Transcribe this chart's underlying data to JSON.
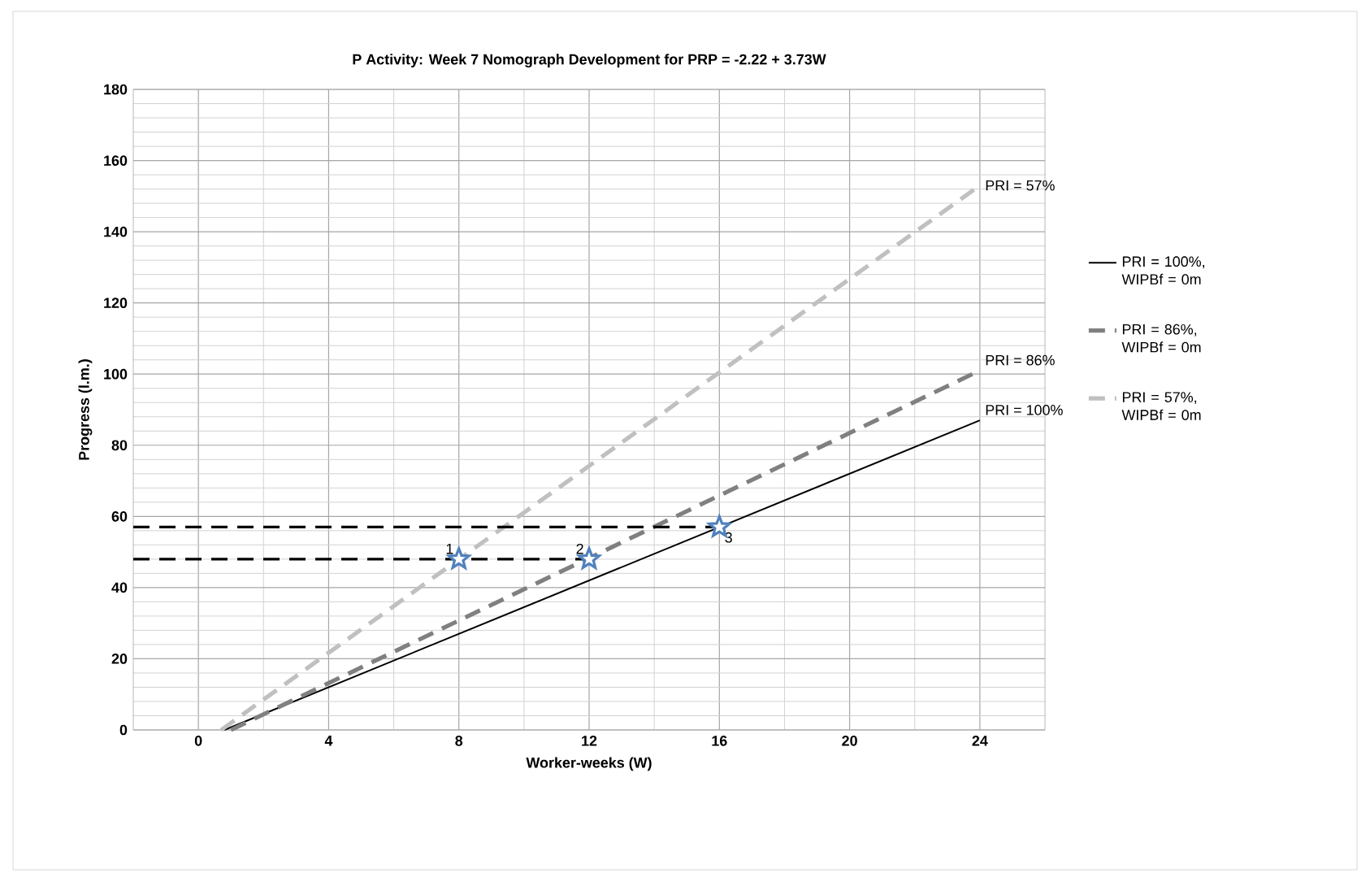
{
  "chart_data": {
    "type": "line",
    "title": "P Activity: Week 7 Nomograph Development for PRP = -2.22 + 3.73W",
    "xlabel": "Worker-weeks (W)",
    "ylabel": "Progress (l.m.)",
    "xlim": [
      -2,
      26
    ],
    "ylim": [
      0,
      180
    ],
    "xticks": [
      0,
      4,
      8,
      12,
      16,
      20,
      24
    ],
    "yticks": [
      0,
      20,
      40,
      60,
      80,
      100,
      120,
      140,
      160,
      180
    ],
    "grid": true,
    "legend": "right",
    "series": [
      {
        "name": "PRI = 100%, WIPBf = 0m",
        "color": "#000000",
        "line_style": "solid",
        "x": [
          0.8,
          24
        ],
        "values": [
          0,
          87
        ]
      },
      {
        "name": "PRI = 86%, WIPBf = 0m",
        "color": "#808080",
        "line_style": "dashed",
        "x": [
          1.0,
          24
        ],
        "values": [
          0,
          101
        ]
      },
      {
        "name": "PRI = 57%, WIPBf = 0m",
        "color": "#c0c0c0",
        "line_style": "dashed",
        "x": [
          0.7,
          24
        ],
        "values": [
          0,
          153
        ]
      },
      {
        "color": "#000000",
        "line_style": "dashed",
        "x": [
          -2,
          16
        ],
        "values": [
          57,
          57
        ]
      },
      {
        "color": "#000000",
        "line_style": "dashed",
        "x": [
          -2,
          12
        ],
        "values": [
          48,
          48
        ]
      },
      {
        "type": "scatter",
        "marker": "star",
        "color": "#4f81bd",
        "x": [
          8,
          12,
          16
        ],
        "values": [
          48,
          48,
          57
        ]
      }
    ],
    "annotations": [
      {
        "text": "PRI = 57%",
        "x": 24,
        "y": 153
      },
      {
        "text": "PRI = 86%",
        "x": 24,
        "y": 101
      },
      {
        "text": "PRI = 100%",
        "x": 24,
        "y": 87
      },
      {
        "text": "1",
        "x": 8,
        "y": 48
      },
      {
        "text": "2",
        "x": 12,
        "y": 48
      },
      {
        "text": "3",
        "x": 16,
        "y": 57
      }
    ]
  }
}
